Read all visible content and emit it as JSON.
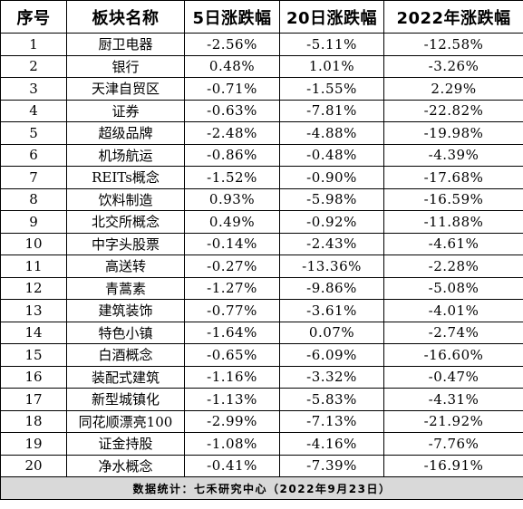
{
  "table": {
    "headers": [
      "序号",
      "板块名称",
      "5日涨跌幅",
      "20日涨跌幅",
      "2022年涨跌幅"
    ],
    "rows": [
      {
        "rank": "1",
        "name": "厨卫电器",
        "d5": "-2.56%",
        "d20": "-5.11%",
        "ytd": "-12.58%"
      },
      {
        "rank": "2",
        "name": "银行",
        "d5": "0.48%",
        "d20": "1.01%",
        "ytd": "-3.26%"
      },
      {
        "rank": "3",
        "name": "天津自贸区",
        "d5": "-0.71%",
        "d20": "-1.55%",
        "ytd": "2.29%"
      },
      {
        "rank": "4",
        "name": "证券",
        "d5": "-0.63%",
        "d20": "-7.81%",
        "ytd": "-22.82%"
      },
      {
        "rank": "5",
        "name": "超级品牌",
        "d5": "-2.48%",
        "d20": "-4.88%",
        "ytd": "-19.98%"
      },
      {
        "rank": "6",
        "name": "机场航运",
        "d5": "-0.86%",
        "d20": "-0.48%",
        "ytd": "-4.39%"
      },
      {
        "rank": "7",
        "name": "REITs概念",
        "d5": "-1.52%",
        "d20": "-0.90%",
        "ytd": "-17.68%"
      },
      {
        "rank": "8",
        "name": "饮料制造",
        "d5": "0.93%",
        "d20": "-5.98%",
        "ytd": "-16.59%"
      },
      {
        "rank": "9",
        "name": "北交所概念",
        "d5": "0.49%",
        "d20": "-0.92%",
        "ytd": "-11.88%"
      },
      {
        "rank": "10",
        "name": "中字头股票",
        "d5": "-0.14%",
        "d20": "-2.43%",
        "ytd": "-4.61%"
      },
      {
        "rank": "11",
        "name": "高送转",
        "d5": "-0.27%",
        "d20": "-13.36%",
        "ytd": "-2.28%"
      },
      {
        "rank": "12",
        "name": "青蒿素",
        "d5": "-1.27%",
        "d20": "-9.86%",
        "ytd": "-5.08%"
      },
      {
        "rank": "13",
        "name": "建筑装饰",
        "d5": "-0.77%",
        "d20": "-3.61%",
        "ytd": "-4.01%"
      },
      {
        "rank": "14",
        "name": "特色小镇",
        "d5": "-1.64%",
        "d20": "0.07%",
        "ytd": "-2.74%"
      },
      {
        "rank": "15",
        "name": "白酒概念",
        "d5": "-0.65%",
        "d20": "-6.09%",
        "ytd": "-16.60%"
      },
      {
        "rank": "16",
        "name": "装配式建筑",
        "d5": "-1.16%",
        "d20": "-3.32%",
        "ytd": "-0.47%"
      },
      {
        "rank": "17",
        "name": "新型城镇化",
        "d5": "-1.13%",
        "d20": "-5.83%",
        "ytd": "-4.31%"
      },
      {
        "rank": "18",
        "name": "同花顺漂亮100",
        "d5": "-2.99%",
        "d20": "-7.13%",
        "ytd": "-21.92%"
      },
      {
        "rank": "19",
        "name": "证金持股",
        "d5": "-1.08%",
        "d20": "-4.16%",
        "ytd": "-7.76%"
      },
      {
        "rank": "20",
        "name": "净水概念",
        "d5": "-0.41%",
        "d20": "-7.39%",
        "ytd": "-16.91%"
      }
    ],
    "footer": "数据统计：七禾研究中心（2022年9月23日）"
  },
  "colors": {
    "border": "#000000",
    "footer_background": "#d9d9d9",
    "background": "#ffffff",
    "text": "#000000"
  }
}
